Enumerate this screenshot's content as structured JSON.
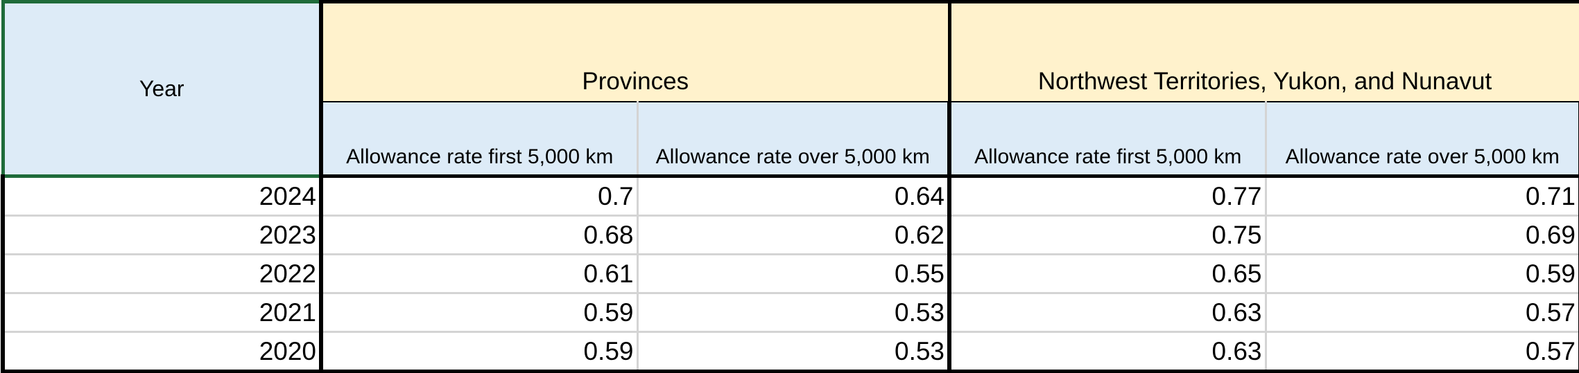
{
  "header": {
    "year": "Year",
    "groups": [
      "Provinces",
      "Northwest Territories, Yukon, and Nunavut"
    ],
    "columns": [
      "Allowance rate first 5,000 km",
      "Allowance rate over 5,000 km",
      "Allowance rate first 5,000 km",
      "Allowance rate over 5,000 km"
    ]
  },
  "table": {
    "rows": [
      [
        2024,
        0.7,
        0.64,
        0.77,
        0.71
      ],
      [
        2023,
        0.68,
        0.62,
        0.75,
        0.69
      ],
      [
        2022,
        0.61,
        0.55,
        0.65,
        0.59
      ],
      [
        2021,
        0.59,
        0.53,
        0.63,
        0.57
      ],
      [
        2020,
        0.59,
        0.53,
        0.63,
        0.57
      ]
    ]
  }
}
